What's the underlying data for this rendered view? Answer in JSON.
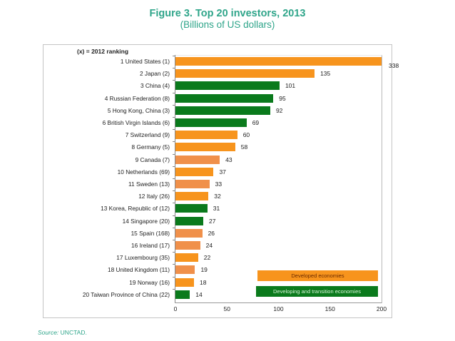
{
  "header": {
    "title": "Figure 3.  Top 20 investors, 2013",
    "subtitle": "(Billions of US dollars)"
  },
  "ranking_note": "(x) = 2012 ranking",
  "legend": {
    "developed": "Developed economies",
    "developing": "Developing and transition economies"
  },
  "source": {
    "label": "Source:",
    "text": "UNCTAD."
  },
  "colors": {
    "developed": "#f7941d",
    "developed_light": "#f0904a",
    "developing": "#0a7a1c",
    "title": "#2fa58a"
  },
  "xaxis_ticks": [
    "0",
    "50",
    "100",
    "150",
    "200"
  ],
  "chart_data": {
    "type": "bar",
    "orientation": "horizontal",
    "title": "Figure 3.  Top 20 investors, 2013",
    "subtitle": "(Billions of US dollars)",
    "xlabel": "",
    "ylabel": "",
    "xlim": [
      0,
      200
    ],
    "x_ticks": [
      0,
      50,
      100,
      150,
      200
    ],
    "grid": false,
    "legend_position": "bottom-right inside plot",
    "note": "(x) = 2012 ranking; United States bar truncated at 200 axis, labeled 338",
    "categories": [
      "1 United States (1)",
      "2 Japan (2)",
      "3 China (4)",
      "4 Russian Federation (8)",
      "5 Hong Kong, China (3)",
      "6 British Virgin Islands (6)",
      "7 Switzerland (9)",
      "8 Germany (5)",
      "9 Canada (7)",
      "10 Netherlands (69)",
      "11 Sweden (13)",
      "12 Italy (26)",
      "13 Korea, Republic of (12)",
      "14 Singapore (20)",
      "15 Spain (168)",
      "16 Ireland (17)",
      "17 Luxembourg (35)",
      "18 United Kingdom (11)",
      "19 Norway (16)",
      "20 Taiwan Province of China (22)"
    ],
    "values": [
      338,
      135,
      101,
      95,
      92,
      69,
      60,
      58,
      43,
      37,
      33,
      32,
      31,
      27,
      26,
      24,
      22,
      19,
      18,
      14
    ],
    "labels": [
      "338",
      "135",
      "101",
      "95",
      "92",
      "69",
      "60",
      "58",
      "43",
      "37",
      "33",
      "32",
      "31",
      "27",
      "26",
      "24",
      "22",
      "19",
      "18",
      "14"
    ],
    "groups": [
      "developed",
      "developed",
      "developing",
      "developing",
      "developing",
      "developing",
      "developed",
      "developed",
      "developed",
      "developed",
      "developed",
      "developed",
      "developing",
      "developing",
      "developed",
      "developed",
      "developed",
      "developed",
      "developed",
      "developing"
    ],
    "bar_colors": [
      "#f7941d",
      "#f7941d",
      "#0a7a1c",
      "#0a7a1c",
      "#0a7a1c",
      "#0a7a1c",
      "#f7941d",
      "#f7941d",
      "#f0904a",
      "#f7941d",
      "#f0904a",
      "#f7941d",
      "#0a7a1c",
      "#0a7a1c",
      "#f0904a",
      "#f0904a",
      "#f7941d",
      "#f0904a",
      "#f7941d",
      "#0a7a1c"
    ],
    "series": [
      {
        "name": "Developed economies",
        "color": "#f7941d"
      },
      {
        "name": "Developing and transition economies",
        "color": "#0a7a1c"
      }
    ]
  }
}
